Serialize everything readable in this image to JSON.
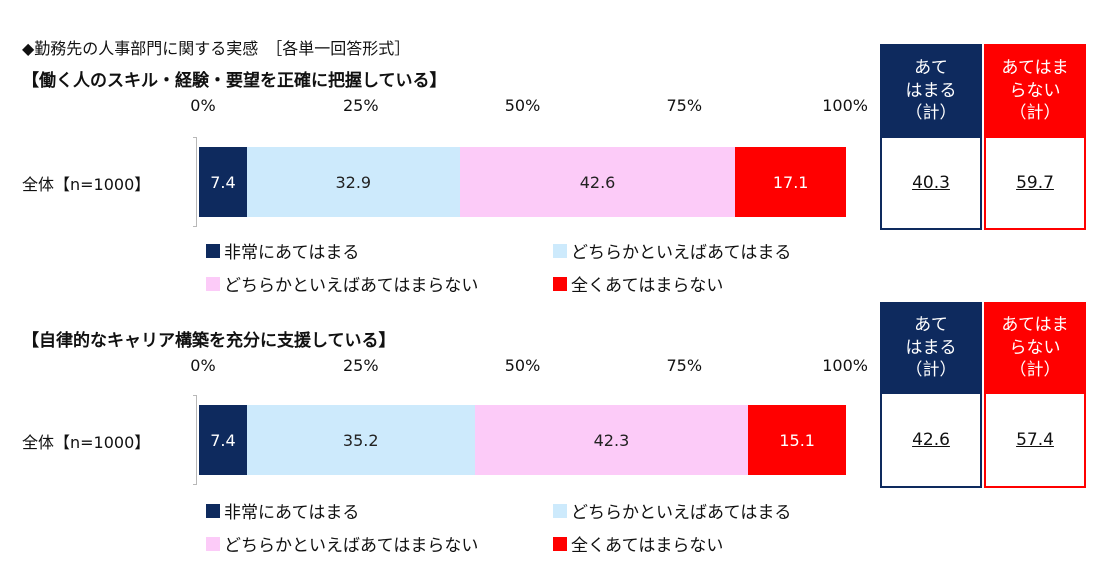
{
  "header_title": "◆勤務先の人事部門に関する実感　［各単一回答形式］",
  "colors": {
    "very_applicable": "#0e2a5e",
    "somewhat_applicable": "#cdeafc",
    "somewhat_not": "#fccbf8",
    "not_at_all": "#ff0000",
    "summary_applicable": "#0e2a5e",
    "summary_not": "#ff0000"
  },
  "legend": {
    "very_applicable": "非常にあてはまる",
    "somewhat_applicable": "どちらかといえばあてはまる",
    "somewhat_not": "どちらかといえばあてはまらない",
    "not_at_all": "全くあてはまらない"
  },
  "summary_headers": {
    "applicable": "あて\nはまる\n（計）",
    "not_applicable": "あてはま\nらない\n（計）"
  },
  "chart_data": [
    {
      "type": "bar",
      "orientation": "horizontal-stacked-100",
      "title": "【働く人のスキル・経験・要望を正確に把握している】",
      "x_ticks": [
        "0%",
        "25%",
        "50%",
        "75%",
        "100%"
      ],
      "xlim": [
        0,
        100
      ],
      "categories": [
        "全体【n=1000】"
      ],
      "series": [
        {
          "name": "非常にあてはまる",
          "values": [
            7.4
          ]
        },
        {
          "name": "どちらかといえばあてはまる",
          "values": [
            32.9
          ]
        },
        {
          "name": "どちらかといえばあてはまらない",
          "values": [
            42.6
          ]
        },
        {
          "name": "全くあてはまらない",
          "values": [
            17.1
          ]
        }
      ],
      "summary": {
        "applicable_total": "40.3",
        "not_applicable_total": "59.7"
      }
    },
    {
      "type": "bar",
      "orientation": "horizontal-stacked-100",
      "title": "【自律的なキャリア構築を充分に支援している】",
      "x_ticks": [
        "0%",
        "25%",
        "50%",
        "75%",
        "100%"
      ],
      "xlim": [
        0,
        100
      ],
      "categories": [
        "全体【n=1000】"
      ],
      "series": [
        {
          "name": "非常にあてはまる",
          "values": [
            7.4
          ]
        },
        {
          "name": "どちらかといえばあてはまる",
          "values": [
            35.2
          ]
        },
        {
          "name": "どちらかといえばあてはまらない",
          "values": [
            42.3
          ]
        },
        {
          "name": "全くあてはまらない",
          "values": [
            15.1
          ]
        }
      ],
      "summary": {
        "applicable_total": "42.6",
        "not_applicable_total": "57.4"
      }
    }
  ]
}
